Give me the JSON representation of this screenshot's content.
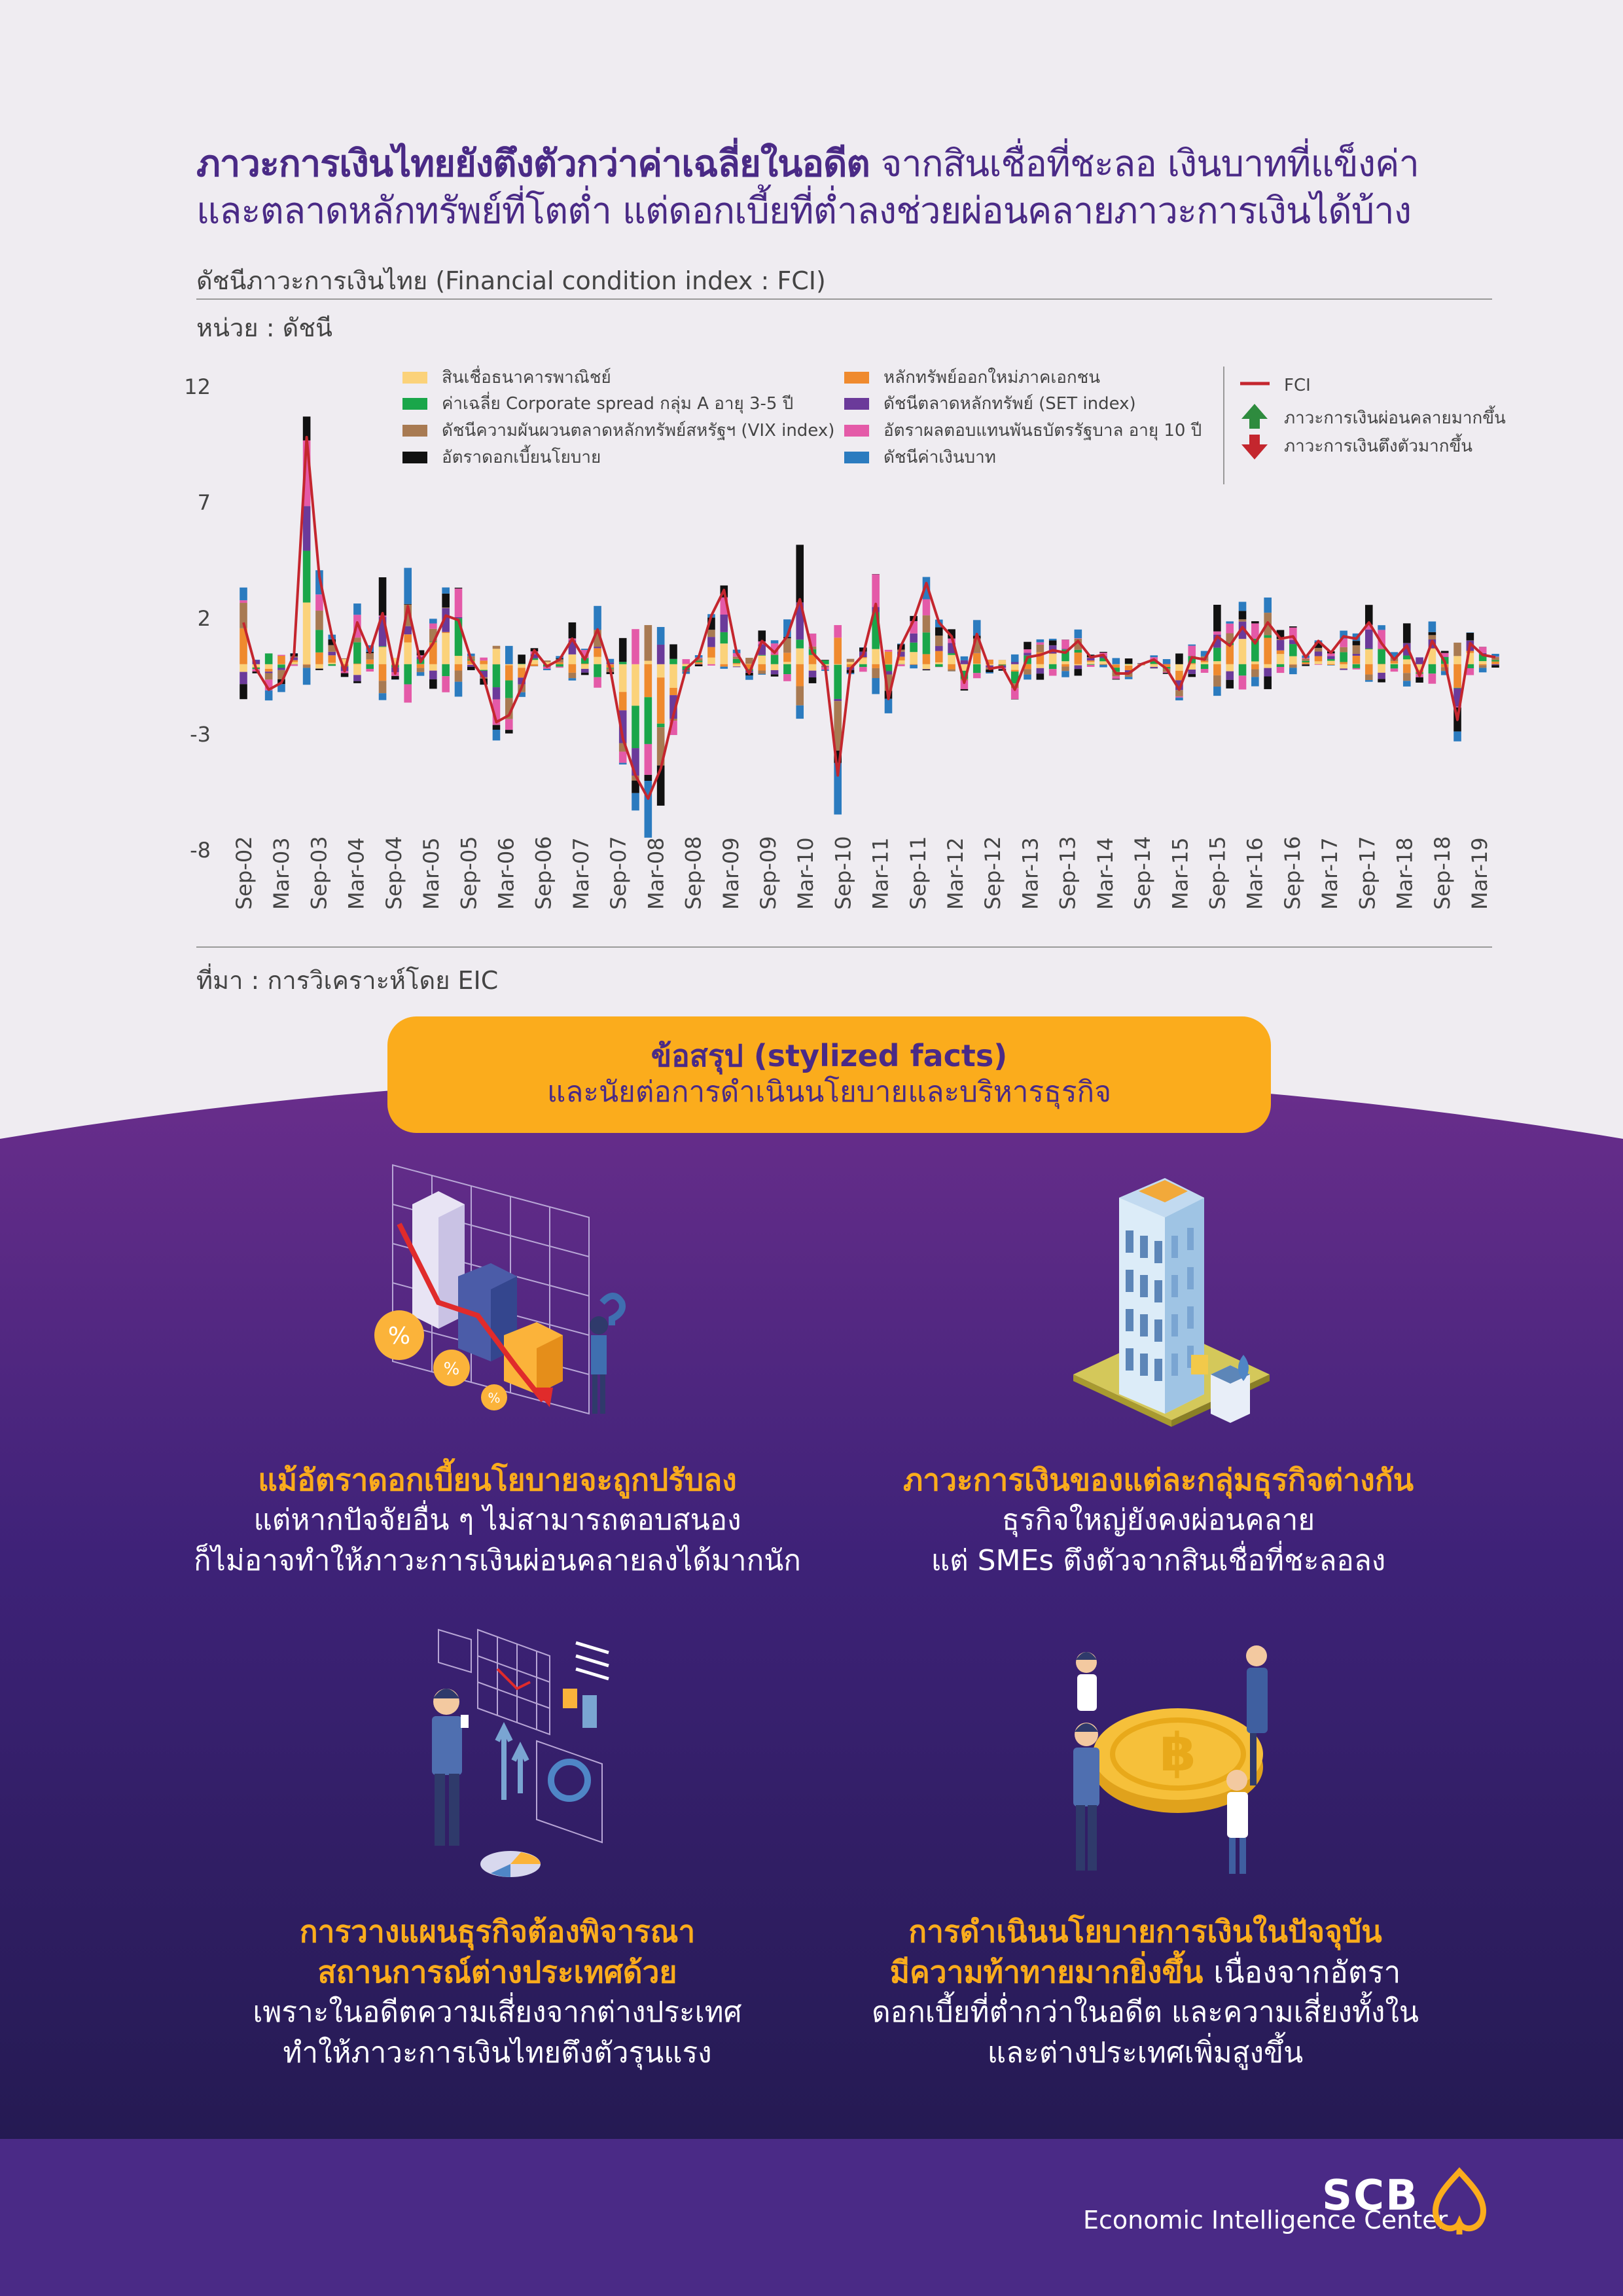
{
  "header": {
    "title_line1_bold": "ภาวะการเงินไทยยังตึงตัวกว่าค่าเฉลี่ยในอดีต",
    "title_line1_rest": "จากสินเชื่อที่ชะลอ เงินบาทที่แข็งค่า",
    "title_line2": "และตลาดหลักทรัพย์ที่โตต่ำ แต่ดอกเบี้ยที่ต่ำลงช่วยผ่อนคลายภาวะการเงินได้บ้าง",
    "chart_subtitle": "ดัชนีภาวะการเงินไทย (Financial condition index : FCI)",
    "unit_label": "หน่วย : ดัชนี",
    "source_label": "ที่มา : การวิเคราะห์โดย EIC"
  },
  "chart_data": {
    "type": "bar",
    "stacked": true,
    "ylim": [
      -8,
      12
    ],
    "yticks": [
      12,
      7,
      2,
      -3,
      -8
    ],
    "grid": false,
    "legend_position": "top",
    "x_tick_labels": [
      "Sep-02",
      "Mar-03",
      "Sep-03",
      "Mar-04",
      "Sep-04",
      "Mar-05",
      "Sep-05",
      "Mar-06",
      "Sep-06",
      "Mar-07",
      "Sep-07",
      "Mar-08",
      "Sep-08",
      "Mar-09",
      "Sep-09",
      "Mar-10",
      "Sep-10",
      "Mar-11",
      "Sep-11",
      "Mar-12",
      "Sep-12",
      "Mar-13",
      "Sep-13",
      "Mar-14",
      "Sep-14",
      "Mar-15",
      "Sep-15",
      "Mar-16",
      "Sep-16",
      "Mar-17",
      "Sep-17",
      "Mar-18",
      "Sep-18",
      "Mar-19"
    ],
    "series_names": [
      "สินเชื่อธนาคารพาณิชย์",
      "หลักทรัพย์ออกใหม่ภาคเอกชน",
      "ค่าเฉลี่ย Corporate spread กลุ่ม A อายุ 3-5 ปี",
      "ดัชนีตลาดหลักทรัพย์ (SET index)",
      "ดัชนีความผันผวนตลาดหลักทรัพย์สหรัฐฯ (VIX index)",
      "อัตราผลตอบแทนพันธบัตรรัฐบาล อายุ 10 ปี",
      "อัตราดอกเบี้ยนโยบาย",
      "ดัชนีค่าเงินบาท"
    ],
    "series_colors": [
      "#fbd27a",
      "#ef8a2e",
      "#1aa64a",
      "#6b3a9a",
      "#a87a52",
      "#e45aa8",
      "#111111",
      "#2b7bbf"
    ],
    "line_series_name": "FCI",
    "line_color": "#c4262e",
    "arrow_up_label": "ภาวะการเงินผ่อนคลายมากขึ้น",
    "arrow_down_label": "ภาวะการเงินตึงตัวมากขึ้น",
    "arrow_up_color": "#2e8b3e",
    "arrow_down_color": "#c4262e",
    "fci": [
      1.8,
      -0.2,
      -1.1,
      -0.8,
      0.4,
      9.8,
      3.8,
      1.2,
      -0.3,
      1.8,
      0.5,
      2.2,
      -0.4,
      2.5,
      0.1,
      0.9,
      2.1,
      1.9,
      0.2,
      -0.6,
      -2.5,
      -2.2,
      -1.0,
      0.6,
      -0.1,
      0.2,
      1.1,
      0.2,
      1.5,
      -0.2,
      -3.2,
      -4.8,
      -5.8,
      -4.5,
      -2.2,
      -0.2,
      0.3,
      2.1,
      3.2,
      0.5,
      -0.4,
      1.0,
      0.5,
      1.2,
      2.8,
      0.5,
      -0.1,
      -4.8,
      -0.2,
      0.4,
      2.6,
      -1.5,
      0.8,
      1.9,
      3.5,
      1.8,
      1.2,
      -0.8,
      1.3,
      -0.2,
      -0.1,
      -1.1,
      0.3,
      0.4,
      0.6,
      0.5,
      1.0,
      0.3,
      0.4,
      -0.4,
      -0.4,
      0.0,
      0.2,
      -0.2,
      -1.1,
      0.3,
      0.2,
      1.2,
      0.8,
      1.6,
      0.9,
      1.8,
      1.1,
      1.2,
      0.3,
      1.0,
      0.5,
      1.2,
      1.1,
      1.8,
      0.9,
      0.2,
      0.8,
      -0.5,
      1.0,
      0.1,
      -2.4,
      0.9,
      0.4,
      0.3
    ]
  },
  "summary": {
    "title": "ข้อสรุป (stylized facts)",
    "subtitle": "และนัยต่อการดำเนินนโยบายและบริหารธุรกิจ"
  },
  "blocks": [
    {
      "head1": "แม้อัตราดอกเบี้ยนโยบายจะถูกปรับลง",
      "text1": "แต่หากปัจจัยอื่น ๆ ไม่สามารถตอบสนอง",
      "text2": "ก็ไม่อาจทำให้ภาวะการเงินผ่อนคลายลงได้มากนัก"
    },
    {
      "head1": "ภาวะการเงินของแต่ละกลุ่มธุรกิจต่างกัน",
      "text1": "ธุรกิจใหญ่ยังคงผ่อนคลาย",
      "text2": "แต่ SMEs ตึงตัวจากสินเชื่อที่ชะลอลง"
    },
    {
      "head1": "การวางแผนธุรกิจต้องพิจารณา",
      "head2": "สถานการณ์ต่างประเทศด้วย",
      "text1": "เพราะในอดีตความเสี่ยงจากต่างประเทศ",
      "text2": "ทำให้ภาวะการเงินไทยตึงตัวรุนแรง"
    },
    {
      "head1": "การดำเนินนโยบายการเงินในปัจจุบัน",
      "head2": "มีความท้าทายมากยิ่งขึ้น",
      "head2_rest": "เนื่องจากอัตรา",
      "text1": "ดอกเบี้ยที่ต่ำกว่าในอดีต และความเสี่ยงทั้งใน",
      "text2": "และต่างประเทศเพิ่มสูงขึ้น"
    }
  ],
  "footer": {
    "brand": "SCB",
    "center": "Economic Intelligence Center",
    "logo_icon": "scb-logo-icon"
  },
  "illustrations": [
    "chart-falling-icon",
    "office-building-icon",
    "business-planning-icon",
    "baht-coin-icon"
  ],
  "colors": {
    "brand_purple": "#4a2a86",
    "accent_yellow": "#fbac1c"
  }
}
